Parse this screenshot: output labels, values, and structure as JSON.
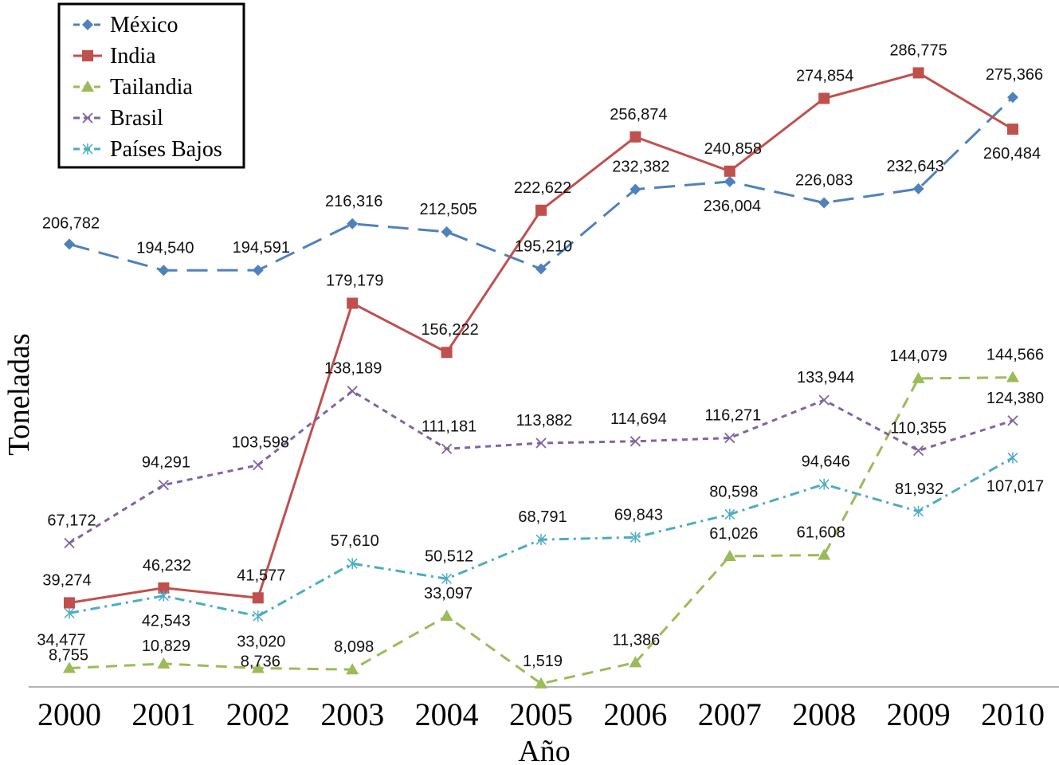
{
  "chart_data": {
    "type": "line",
    "title": "",
    "xlabel": "Año",
    "ylabel": "Toneladas",
    "categories": [
      "2000",
      "2001",
      "2002",
      "2003",
      "2004",
      "2005",
      "2006",
      "2007",
      "2008",
      "2009",
      "2010"
    ],
    "ylim": [
      0,
      300000
    ],
    "grid": false,
    "legend": "top-left",
    "series": [
      {
        "name": "México",
        "color": "#4F81BD",
        "marker": "diamond",
        "dash": "long-dash",
        "values": [
          206782,
          194540,
          194591,
          216316,
          212505,
          195210,
          232382,
          236004,
          226083,
          232643,
          275366
        ],
        "labels": [
          "206,782",
          "194,540",
          "194,591",
          "216,316",
          "212,505",
          "195,210",
          "232,382",
          "236,004",
          "226,083",
          "232,643",
          "275,366"
        ]
      },
      {
        "name": "India",
        "color": "#C0504D",
        "marker": "square",
        "dash": "solid",
        "values": [
          39274,
          46232,
          41577,
          179179,
          156222,
          222622,
          256874,
          240858,
          274854,
          286775,
          260484
        ],
        "labels": [
          "39,274",
          "46,232",
          "41,577",
          "179,179",
          "156,222",
          "222,622",
          "256,874",
          "240,858",
          "274,854",
          "286,775",
          "260,484"
        ]
      },
      {
        "name": "Tailandia",
        "color": "#9BBB59",
        "marker": "triangle",
        "dash": "dash",
        "values": [
          8755,
          10829,
          8736,
          8098,
          33097,
          1519,
          11386,
          61026,
          61608,
          144079,
          144566
        ],
        "labels": [
          "8,755",
          "10,829",
          "8,736",
          "8,098",
          "33,097",
          "1,519",
          "11,386",
          "61,026",
          "61,608",
          "144,079",
          "144,566"
        ]
      },
      {
        "name": "Brasil",
        "color": "#8064A2",
        "marker": "x",
        "dash": "short-dash",
        "values": [
          67172,
          94291,
          103598,
          138189,
          111181,
          113882,
          114694,
          116271,
          133944,
          110355,
          124380
        ],
        "labels": [
          "67,172",
          "94,291",
          "103,598",
          "138,189",
          "111,181",
          "113,882",
          "114,694",
          "116,271",
          "133,944",
          "110,355",
          "124,380"
        ]
      },
      {
        "name": "Países Bajos",
        "color": "#4BACC6",
        "marker": "star",
        "dash": "dash-dot",
        "values": [
          34477,
          42543,
          33020,
          57610,
          50512,
          68791,
          69843,
          80598,
          94646,
          81932,
          107017
        ],
        "labels": [
          "34,477",
          "42,543",
          "33,020",
          "57,610",
          "50,512",
          "68,791",
          "69,843",
          "80,598",
          "94,646",
          "81,932",
          "107,017"
        ]
      }
    ]
  }
}
